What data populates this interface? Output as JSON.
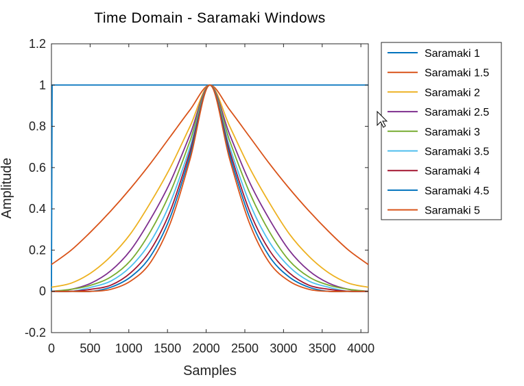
{
  "chart_data": {
    "type": "line",
    "title": "Time Domain - Saramaki Windows",
    "xlabel": "Samples",
    "ylabel": "Amplitude",
    "xlim": [
      0,
      4096
    ],
    "ylim": [
      -0.2,
      1.2
    ],
    "xticks": [
      0,
      500,
      1000,
      1500,
      2000,
      2500,
      3000,
      3500,
      4000
    ],
    "yticks": [
      -0.2,
      0,
      0.2,
      0.4,
      0.6,
      0.8,
      1,
      1.2
    ],
    "grid": false,
    "legend_position": "outside-right",
    "x": [
      0,
      256,
      512,
      768,
      1024,
      1280,
      1536,
      1792,
      2048,
      2304,
      2560,
      2816,
      3072,
      3328,
      3584,
      3840,
      4096
    ],
    "series": [
      {
        "name": "Saramaki 1",
        "color": "#0072BD",
        "values": [
          0.0,
          1,
          1,
          1,
          1,
          1,
          1,
          1,
          1,
          1,
          1,
          1,
          1,
          1,
          1,
          1,
          1
        ]
      },
      {
        "name": "Saramaki 1.5",
        "color": "#D95319",
        "values": [
          0.13,
          0.2,
          0.29,
          0.39,
          0.5,
          0.62,
          0.75,
          0.88,
          1.0,
          0.88,
          0.75,
          0.62,
          0.5,
          0.39,
          0.29,
          0.2,
          0.13
        ]
      },
      {
        "name": "Saramaki 2",
        "color": "#EDB120",
        "values": [
          0.02,
          0.04,
          0.09,
          0.17,
          0.28,
          0.43,
          0.6,
          0.8,
          1.0,
          0.8,
          0.6,
          0.43,
          0.28,
          0.17,
          0.09,
          0.04,
          0.02
        ]
      },
      {
        "name": "Saramaki 2.5",
        "color": "#7E2F8E",
        "values": [
          0.0,
          0.01,
          0.04,
          0.1,
          0.2,
          0.35,
          0.53,
          0.76,
          1.0,
          0.76,
          0.53,
          0.35,
          0.2,
          0.1,
          0.04,
          0.01,
          0.0
        ]
      },
      {
        "name": "Saramaki 3",
        "color": "#77AC30",
        "values": [
          0.0,
          0.01,
          0.03,
          0.07,
          0.15,
          0.29,
          0.48,
          0.73,
          1.0,
          0.73,
          0.48,
          0.29,
          0.15,
          0.07,
          0.03,
          0.01,
          0.0
        ]
      },
      {
        "name": "Saramaki 3.5",
        "color": "#4DBEEE",
        "values": [
          0.0,
          0.0,
          0.02,
          0.05,
          0.12,
          0.24,
          0.43,
          0.7,
          1.0,
          0.7,
          0.43,
          0.24,
          0.12,
          0.05,
          0.02,
          0.0,
          0.0
        ]
      },
      {
        "name": "Saramaki 4",
        "color": "#A2142F",
        "values": [
          0.0,
          0.0,
          0.01,
          0.03,
          0.09,
          0.2,
          0.39,
          0.68,
          1.0,
          0.68,
          0.39,
          0.2,
          0.09,
          0.03,
          0.01,
          0.0,
          0.0
        ]
      },
      {
        "name": "Saramaki 4.5",
        "color": "#0072BD",
        "values": [
          0.0,
          0.0,
          0.0,
          0.02,
          0.07,
          0.17,
          0.36,
          0.66,
          1.0,
          0.66,
          0.36,
          0.17,
          0.07,
          0.02,
          0.0,
          0.0,
          0.0
        ]
      },
      {
        "name": "Saramaki 5",
        "color": "#D95319",
        "values": [
          0.0,
          0.0,
          0.0,
          0.01,
          0.05,
          0.14,
          0.33,
          0.64,
          1.0,
          0.64,
          0.33,
          0.14,
          0.05,
          0.01,
          0.0,
          0.0,
          0.0
        ]
      }
    ]
  }
}
